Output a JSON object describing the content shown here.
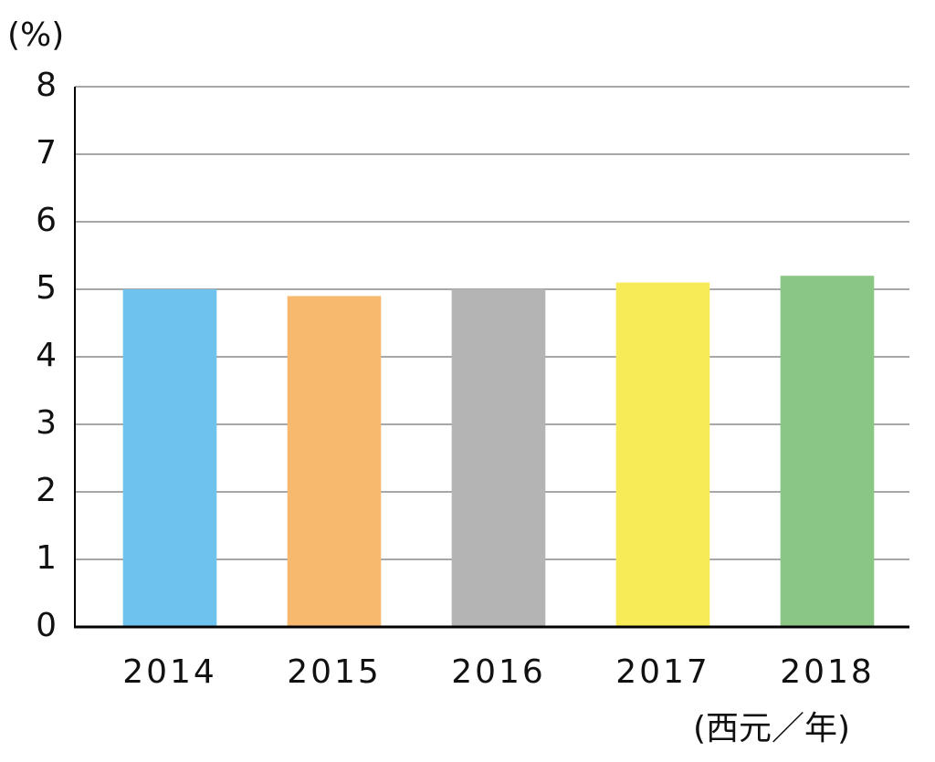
{
  "chart_data": {
    "type": "bar",
    "y_label": "(%)",
    "x_label": "(西元／年)",
    "categories": [
      "2014",
      "2015",
      "2016",
      "2017",
      "2018"
    ],
    "values": [
      5.0,
      4.9,
      5.0,
      5.1,
      5.2
    ],
    "colors": [
      "#6ec2ee",
      "#f6b96e",
      "#b4b4b5",
      "#f7ec58",
      "#8ac785"
    ],
    "ylim": [
      0,
      8
    ],
    "yticks": [
      0,
      1,
      2,
      3,
      4,
      5,
      6,
      7,
      8
    ],
    "grid": true
  }
}
